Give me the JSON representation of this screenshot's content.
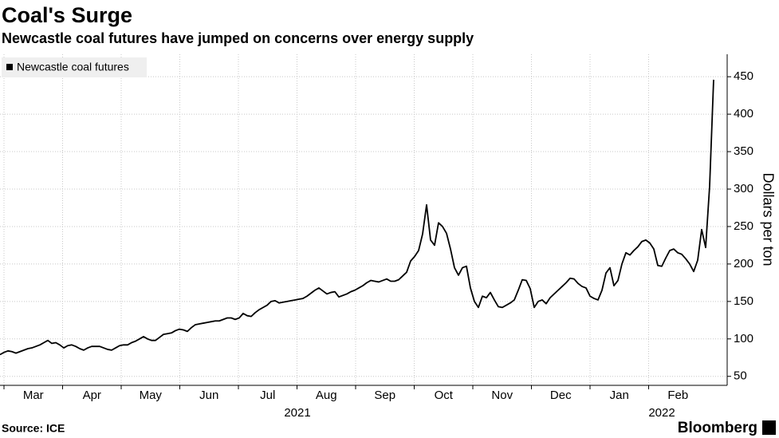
{
  "chart_data": {
    "type": "line",
    "title": "Coal's Surge",
    "subtitle": "Newcastle coal futures have jumped on concerns over energy supply",
    "source": "Source: ICE",
    "brand": "Bloomberg",
    "y_axis_label": "Dollars per ton",
    "month_labels": [
      "Mar",
      "Apr",
      "May",
      "Jun",
      "Jul",
      "Aug",
      "Sep",
      "Oct",
      "Nov",
      "Dec",
      "Jan",
      "Feb"
    ],
    "years": [
      "2021",
      "2022"
    ],
    "series": [
      {
        "name": "Newcastle coal futures",
        "color": "#000000",
        "values": [
          79,
          82,
          84,
          83,
          81,
          83,
          85,
          87,
          88,
          90,
          92,
          95,
          98,
          94,
          95,
          92,
          88,
          91,
          92,
          90,
          87,
          85,
          88,
          90,
          90,
          90,
          88,
          86,
          85,
          88,
          91,
          92,
          92,
          95,
          97,
          100,
          103,
          100,
          98,
          98,
          102,
          106,
          107,
          108,
          111,
          113,
          112,
          110,
          115,
          119,
          120,
          121,
          122,
          123,
          124,
          124,
          126,
          128,
          128,
          126,
          128,
          134,
          131,
          130,
          135,
          139,
          142,
          145,
          150,
          151,
          148,
          149,
          150,
          151,
          152,
          153,
          154,
          157,
          161,
          165,
          168,
          164,
          160,
          162,
          163,
          156,
          158,
          160,
          163,
          165,
          168,
          171,
          175,
          178,
          177,
          176,
          178,
          180,
          177,
          177,
          179,
          184,
          189,
          204,
          210,
          218,
          240,
          279,
          232,
          225,
          255,
          250,
          241,
          220,
          195,
          185,
          195,
          197,
          168,
          150,
          142,
          157,
          155,
          162,
          152,
          143,
          142,
          145,
          148,
          152,
          165,
          179,
          178,
          167,
          142,
          150,
          152,
          147,
          155,
          160,
          165,
          170,
          175,
          181,
          180,
          174,
          170,
          168,
          157,
          154,
          152,
          165,
          188,
          195,
          171,
          178,
          200,
          215,
          212,
          218,
          223,
          230,
          232,
          228,
          220,
          198,
          197,
          208,
          218,
          220,
          215,
          213,
          207,
          200,
          190,
          205,
          246,
          222,
          304,
          446
        ]
      }
    ],
    "ylim": [
      38,
      480
    ],
    "yticks": [
      50,
      100,
      150,
      200,
      250,
      300,
      350,
      400,
      450
    ],
    "grid": true,
    "legend": "upper left"
  }
}
